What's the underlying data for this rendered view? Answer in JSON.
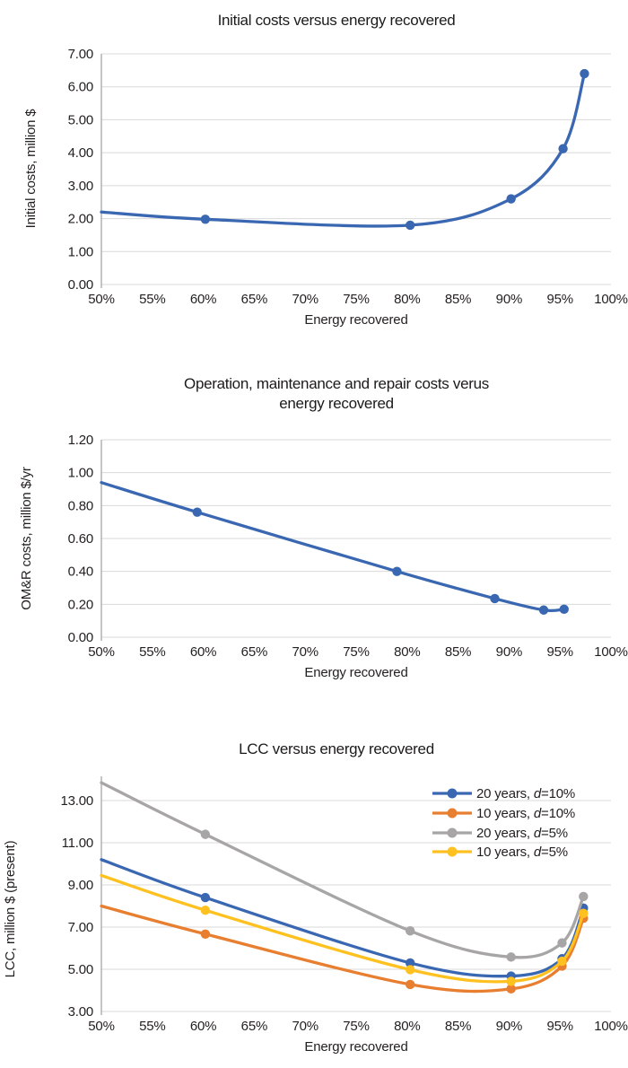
{
  "page_background": "#ffffff",
  "colors": {
    "grid": "#d9d9d9",
    "axis": "#a6a6a6",
    "text": "#231f20",
    "series_blue": "#3a67b1",
    "series_orange": "#e87e2f",
    "series_gray": "#a7a5a6",
    "series_yellow": "#fec120"
  },
  "chart_data": [
    {
      "type": "line",
      "title": "Initial costs versus energy recovered",
      "xlabel": "Energy recovered",
      "ylabel": "Initial costs, million $",
      "x_range": [
        50,
        100
      ],
      "y_range": [
        0,
        7
      ],
      "x_tick_values": [
        50,
        55,
        60,
        65,
        70,
        75,
        80,
        85,
        90,
        95,
        100
      ],
      "x_tick_labels": [
        "50%",
        "55%",
        "60%",
        "65%",
        "70%",
        "75%",
        "80%",
        "85%",
        "90%",
        "95%",
        "100%"
      ],
      "grid_values": [
        0,
        1,
        2,
        3,
        4,
        5,
        6,
        7
      ],
      "y_tick_labels": [
        "0.00",
        "1.00",
        "2.00",
        "3.00",
        "4.00",
        "5.00",
        "6.00",
        "7.00"
      ],
      "grid": true,
      "legend": null,
      "series": [
        {
          "name": "Initial costs",
          "color": "#3a67b1",
          "x": [
            50,
            60.2,
            80.3,
            90.2,
            95.3,
            97.4
          ],
          "y": [
            2.2,
            1.98,
            1.8,
            2.6,
            4.12,
            6.4
          ],
          "markers_from_index": 1
        }
      ]
    },
    {
      "type": "line",
      "title": "Operation, maintenance and repair costs verus\nenergy recovered",
      "xlabel": "Energy recovered",
      "ylabel": "OM&R costs, million $/yr",
      "x_range": [
        50,
        100
      ],
      "y_range": [
        0,
        1.2
      ],
      "x_tick_values": [
        50,
        55,
        60,
        65,
        70,
        75,
        80,
        85,
        90,
        95,
        100
      ],
      "x_tick_labels": [
        "50%",
        "55%",
        "60%",
        "65%",
        "70%",
        "75%",
        "80%",
        "85%",
        "90%",
        "95%",
        "100%"
      ],
      "grid_values": [
        0,
        0.2,
        0.4,
        0.6,
        0.8,
        1.0,
        1.2
      ],
      "y_tick_labels": [
        "0.00",
        "0.20",
        "0.40",
        "0.60",
        "0.80",
        "1.00",
        "1.20"
      ],
      "grid": true,
      "legend": null,
      "series": [
        {
          "name": "OM&R costs",
          "color": "#3a67b1",
          "x": [
            50,
            59.4,
            79,
            88.6,
            93.4,
            95.4
          ],
          "y": [
            0.94,
            0.76,
            0.4,
            0.235,
            0.165,
            0.17
          ],
          "markers_from_index": 1
        }
      ]
    },
    {
      "type": "line",
      "title": "LCC versus energy recovered",
      "xlabel": "Energy recovered",
      "ylabel": "LCC, million $ (present)",
      "x_range": [
        50,
        100
      ],
      "y_range": [
        3,
        14.15
      ],
      "x_tick_values": [
        50,
        55,
        60,
        65,
        70,
        75,
        80,
        85,
        90,
        95,
        100
      ],
      "x_tick_labels": [
        "50%",
        "55%",
        "60%",
        "65%",
        "70%",
        "75%",
        "80%",
        "85%",
        "90%",
        "95%",
        "100%"
      ],
      "grid_values": [
        3,
        5,
        7,
        9,
        11,
        13
      ],
      "y_tick_labels": [
        "3.00",
        "5.00",
        "7.00",
        "9.00",
        "11.00",
        "13.00"
      ],
      "grid": true,
      "legend": {
        "position": "top-right",
        "items": [
          {
            "prefix": "20 years, ",
            "variable": "d",
            "suffix": "=10%",
            "color": "#3a67b1"
          },
          {
            "prefix": "10 years, ",
            "variable": "d",
            "suffix": "=10%",
            "color": "#e87e2f"
          },
          {
            "prefix": "20 years, ",
            "variable": "d",
            "suffix": "=5%",
            "color": "#a7a5a6"
          },
          {
            "prefix": "10 years, ",
            "variable": "d",
            "suffix": "=5%",
            "color": "#fec120"
          }
        ]
      },
      "series": [
        {
          "name": "20 years, d=10%",
          "color": "#3a67b1",
          "x": [
            50,
            60.2,
            80.3,
            90.2,
            95.2,
            97.3
          ],
          "y": [
            10.2,
            8.4,
            5.3,
            4.68,
            5.5,
            7.9
          ],
          "markers_from_index": 1
        },
        {
          "name": "10 years, d=10%",
          "color": "#e87e2f",
          "x": [
            50,
            60.2,
            80.3,
            90.2,
            95.2,
            97.3
          ],
          "y": [
            8.0,
            6.67,
            4.28,
            4.07,
            5.15,
            7.42
          ],
          "markers_from_index": 1
        },
        {
          "name": "20 years, d=5%",
          "color": "#a7a5a6",
          "x": [
            50,
            60.2,
            80.3,
            90.2,
            95.2,
            97.3
          ],
          "y": [
            13.85,
            11.4,
            6.82,
            5.58,
            6.25,
            8.45
          ],
          "markers_from_index": 1
        },
        {
          "name": "10 years, d=5%",
          "color": "#fec120",
          "x": [
            50,
            60.2,
            80.3,
            90.2,
            95.2,
            97.3
          ],
          "y": [
            9.45,
            7.8,
            4.98,
            4.43,
            5.38,
            7.65
          ],
          "markers_from_index": 1
        }
      ]
    }
  ]
}
